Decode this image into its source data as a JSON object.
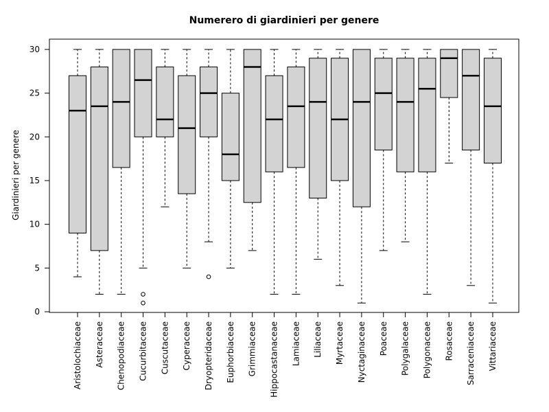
{
  "chart_data": {
    "type": "boxplot",
    "title": "Numerero di giardinieri per genere",
    "xlabel": "",
    "ylabel": "Giardinieri per genere",
    "ylim": [
      0,
      30
    ],
    "yticks": [
      0,
      5,
      10,
      15,
      20,
      25,
      30
    ],
    "grid": false,
    "legend": "none",
    "colors": {
      "box_fill": "#d3d3d3",
      "stroke": "#000000"
    },
    "categories": [
      "Aristolochiaceae",
      "Asteraceae",
      "Chenopodiaceae",
      "Cucurbitaceae",
      "Cuscutaceae",
      "Cyperaceae",
      "Dryopteridaceae",
      "Euphorbiaceae",
      "Grimmiaceae",
      "Hippocastanaceae",
      "Lamiaceae",
      "Liliaceae",
      "Myrtaceae",
      "Nyctaginaceae",
      "Poaceae",
      "Polygalaceae",
      "Polygonaceae",
      "Rosaceae",
      "Sarraceniaceae",
      "Vittariaceae"
    ],
    "boxes": [
      {
        "whisker_low": 4,
        "q1": 9,
        "median": 23,
        "q3": 27,
        "whisker_high": 30,
        "outliers": []
      },
      {
        "whisker_low": 2,
        "q1": 7,
        "median": 23.5,
        "q3": 28,
        "whisker_high": 30,
        "outliers": []
      },
      {
        "whisker_low": 2,
        "q1": 16.5,
        "median": 24,
        "q3": 30,
        "whisker_high": 30,
        "outliers": []
      },
      {
        "whisker_low": 5,
        "q1": 20,
        "median": 26.5,
        "q3": 30,
        "whisker_high": 30,
        "outliers": [
          2,
          1
        ]
      },
      {
        "whisker_low": 12,
        "q1": 20,
        "median": 22,
        "q3": 28,
        "whisker_high": 30,
        "outliers": []
      },
      {
        "whisker_low": 5,
        "q1": 13.5,
        "median": 21,
        "q3": 27,
        "whisker_high": 30,
        "outliers": []
      },
      {
        "whisker_low": 8,
        "q1": 20,
        "median": 25,
        "q3": 28,
        "whisker_high": 30,
        "outliers": [
          4
        ]
      },
      {
        "whisker_low": 5,
        "q1": 15,
        "median": 18,
        "q3": 25,
        "whisker_high": 30,
        "outliers": []
      },
      {
        "whisker_low": 7,
        "q1": 12.5,
        "median": 28,
        "q3": 30,
        "whisker_high": 30,
        "outliers": []
      },
      {
        "whisker_low": 2,
        "q1": 16,
        "median": 22,
        "q3": 27,
        "whisker_high": 30,
        "outliers": []
      },
      {
        "whisker_low": 2,
        "q1": 16.5,
        "median": 23.5,
        "q3": 28,
        "whisker_high": 30,
        "outliers": []
      },
      {
        "whisker_low": 6,
        "q1": 13,
        "median": 24,
        "q3": 29,
        "whisker_high": 30,
        "outliers": []
      },
      {
        "whisker_low": 3,
        "q1": 15,
        "median": 22,
        "q3": 29,
        "whisker_high": 30,
        "outliers": []
      },
      {
        "whisker_low": 1,
        "q1": 12,
        "median": 24,
        "q3": 30,
        "whisker_high": 30,
        "outliers": []
      },
      {
        "whisker_low": 7,
        "q1": 18.5,
        "median": 25,
        "q3": 29,
        "whisker_high": 30,
        "outliers": []
      },
      {
        "whisker_low": 8,
        "q1": 16,
        "median": 24,
        "q3": 29,
        "whisker_high": 30,
        "outliers": []
      },
      {
        "whisker_low": 2,
        "q1": 16,
        "median": 25.5,
        "q3": 29,
        "whisker_high": 30,
        "outliers": []
      },
      {
        "whisker_low": 17,
        "q1": 24.5,
        "median": 29,
        "q3": 30,
        "whisker_high": 30,
        "outliers": []
      },
      {
        "whisker_low": 3,
        "q1": 18.5,
        "median": 27,
        "q3": 30,
        "whisker_high": 30,
        "outliers": []
      },
      {
        "whisker_low": 1,
        "q1": 17,
        "median": 23.5,
        "q3": 29,
        "whisker_high": 30,
        "outliers": []
      }
    ]
  }
}
